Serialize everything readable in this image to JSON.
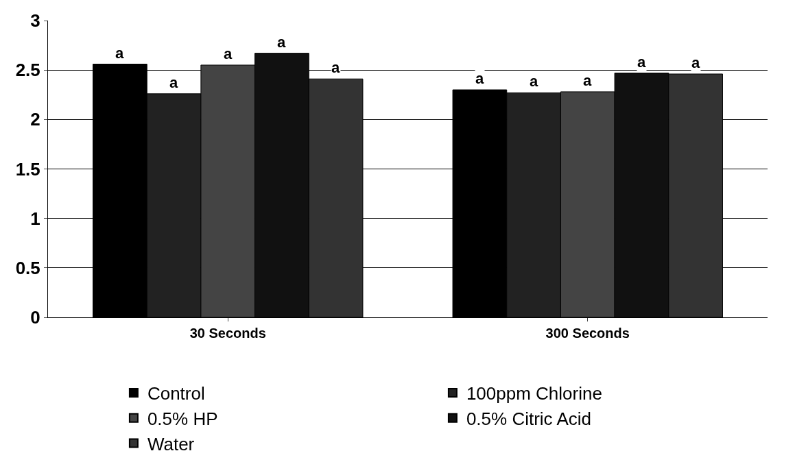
{
  "chart_data": {
    "type": "bar",
    "categories": [
      "30 Seconds",
      "300 Seconds"
    ],
    "series": [
      {
        "name": "Control",
        "color": "#000000",
        "values": [
          2.56,
          2.3
        ],
        "value_labels": [
          "a",
          "a"
        ]
      },
      {
        "name": "100ppm Chlorine",
        "color": "#222222",
        "values": [
          2.26,
          2.27
        ],
        "value_labels": [
          "a",
          "a"
        ]
      },
      {
        "name": "0.5% HP",
        "color": "#444444",
        "values": [
          2.55,
          2.28
        ],
        "value_labels": [
          "a",
          "a"
        ]
      },
      {
        "name": "0.5% Citric Acid",
        "color": "#111111",
        "values": [
          2.67,
          2.47
        ],
        "value_labels": [
          "a",
          "a"
        ]
      },
      {
        "name": "Water",
        "color": "#333333",
        "values": [
          2.41,
          2.46
        ],
        "value_labels": [
          "a",
          "a"
        ]
      }
    ],
    "ylim": [
      0,
      3
    ],
    "yticks": [
      0,
      0.5,
      1,
      1.5,
      2,
      2.5,
      3
    ],
    "grid": "y",
    "legend": "bottom"
  }
}
